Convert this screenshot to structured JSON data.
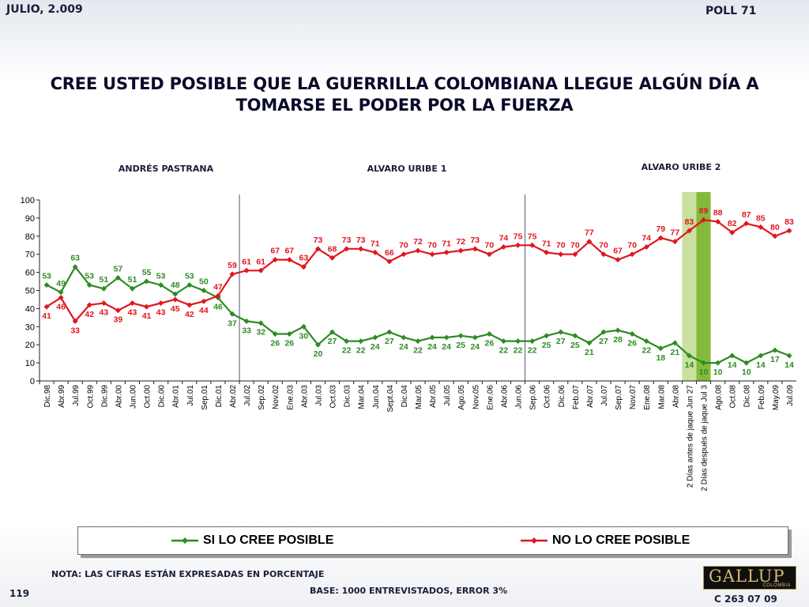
{
  "header": {
    "date": "JULIO, 2.009",
    "poll": "POLL 71",
    "title": "CREE USTED POSIBLE QUE LA GUERRILLA COLOMBIANA LLEGUE ALGÚN DÍA A TOMARSE EL PODER POR LA FUERZA"
  },
  "colors": {
    "si": "#2e8b24",
    "no": "#e0161e",
    "shade_light": "#c9e0a0",
    "shade_dark": "#84ba3c",
    "divider": "#555577"
  },
  "chart_data": {
    "type": "line",
    "ylim": [
      0,
      100
    ],
    "yticks": [
      0,
      10,
      20,
      30,
      40,
      50,
      60,
      70,
      80,
      90,
      100
    ],
    "grid": false,
    "legend_position": "bottom",
    "categories": [
      "Dic.98",
      "Abr.99",
      "Jul.99",
      "Oct.99",
      "Dic.99",
      "Abr.00",
      "Jun.00",
      "Oct.00",
      "Dic.00",
      "Abr.01",
      "Jul.01",
      "Sep.01",
      "Dic.01",
      "Abr.02",
      "Jul.02",
      "Sep.02",
      "Nov.02",
      "Ene.03",
      "Abr.03",
      "Jul.03",
      "Oct.03",
      "Dic.03",
      "Mar.04",
      "Jun.04",
      "Sept.04",
      "Dic.04",
      "Mar.05",
      "Abr.05",
      "Jul.05",
      "Ago.05",
      "Nov.05",
      "Ene.06",
      "Abr.06",
      "Jun.06",
      "Sep.06",
      "Oct.06",
      "Dic.06",
      "Feb.07",
      "Abr.07",
      "Jul.07",
      "Sep.07",
      "Nov.07",
      "Ene.08",
      "Mar.08",
      "Abr.08",
      "2 Días antes de jaque Jun 27",
      "2 Días después de jaque Jul 3",
      "Ago.08",
      "Oct.08",
      "Dic.08",
      "Feb.09",
      "May.09",
      "Jul.09"
    ],
    "series": [
      {
        "name": "SI LO CREE POSIBLE",
        "values": [
          53,
          49,
          63,
          53,
          51,
          57,
          51,
          55,
          53,
          48,
          53,
          50,
          46,
          37,
          33,
          32,
          26,
          26,
          30,
          20,
          27,
          22,
          22,
          24,
          27,
          24,
          22,
          24,
          24,
          25,
          24,
          26,
          22,
          22,
          22,
          25,
          27,
          25,
          21,
          27,
          28,
          26,
          22,
          18,
          21,
          14,
          10,
          10,
          14,
          10,
          14,
          17,
          14
        ]
      },
      {
        "name": "NO LO CREE POSIBLE",
        "values": [
          41,
          46,
          33,
          42,
          43,
          39,
          43,
          41,
          43,
          45,
          42,
          44,
          47,
          59,
          61,
          61,
          67,
          67,
          63,
          73,
          68,
          73,
          73,
          71,
          66,
          70,
          72,
          70,
          71,
          72,
          73,
          70,
          74,
          75,
          75,
          71,
          70,
          70,
          77,
          70,
          67,
          70,
          74,
          79,
          77,
          83,
          89,
          88,
          82,
          87,
          85,
          80,
          83
        ]
      }
    ],
    "periods": [
      {
        "label": "ANDRÉS  PASTRANA"
      },
      {
        "label": "ALVARO URIBE 1"
      },
      {
        "label": "ALVARO URIBE 2"
      }
    ]
  },
  "footer": {
    "note": "NOTA: LAS CIFRAS ESTÁN EXPRESADAS EN PORCENTAJE",
    "base": "BASE: 1000 ENTREVISTADOS, ERROR 3%",
    "page": "119",
    "code": "C 263 07 09",
    "logo_text": "GALLUP",
    "logo_sub": "COLOMBIA"
  }
}
